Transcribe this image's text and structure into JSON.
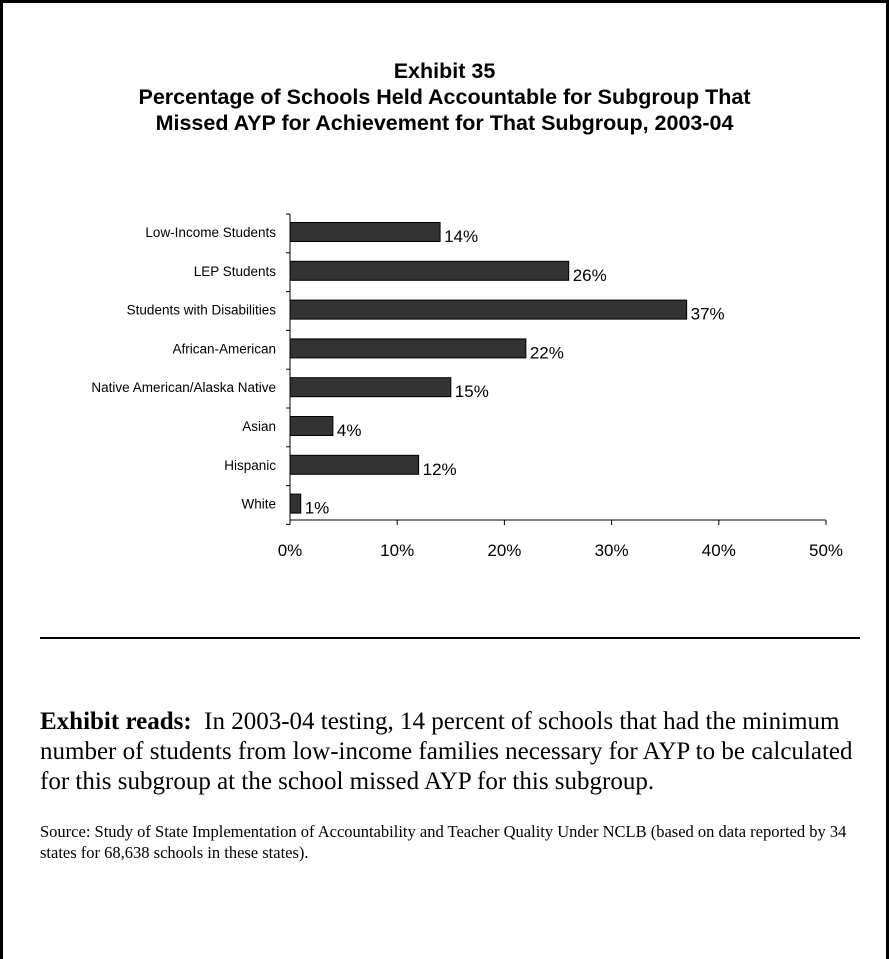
{
  "exhibit": {
    "number_label": "Exhibit 35",
    "title_line1": "Percentage of Schools Held Accountable for Subgroup That",
    "title_line2": "Missed AYP for Achievement for That Subgroup, 2003-04"
  },
  "chart_data": {
    "type": "bar",
    "orientation": "horizontal",
    "categories": [
      "Low-Income Students",
      "LEP Students",
      "Students with Disabilities",
      "African-American",
      "Native American/Alaska Native",
      "Asian",
      "Hispanic",
      "White"
    ],
    "values": [
      14,
      26,
      37,
      22,
      15,
      4,
      12,
      1
    ],
    "data_labels": [
      "14%",
      "26%",
      "37%",
      "22%",
      "15%",
      "4%",
      "12%",
      "1%"
    ],
    "x_ticks": [
      0,
      10,
      20,
      30,
      40,
      50
    ],
    "x_tick_labels": [
      "0%",
      "10%",
      "20%",
      "30%",
      "40%",
      "50%"
    ],
    "xlim": [
      0,
      50
    ],
    "unit": "%",
    "bar_color": "#333333",
    "grid": false,
    "legend": "none"
  },
  "notes": {
    "reads_label": "Exhibit reads:",
    "reads_text": "In 2003-04 testing, 14 percent of schools that had the minimum number of students from low-income families necessary for AYP to be calculated for this subgroup at the school missed AYP for this subgroup.",
    "source": "Source:  Study of State Implementation of Accountability and Teacher Quality Under NCLB (based on data reported by 34 states for 68,638 schools in these states)."
  }
}
